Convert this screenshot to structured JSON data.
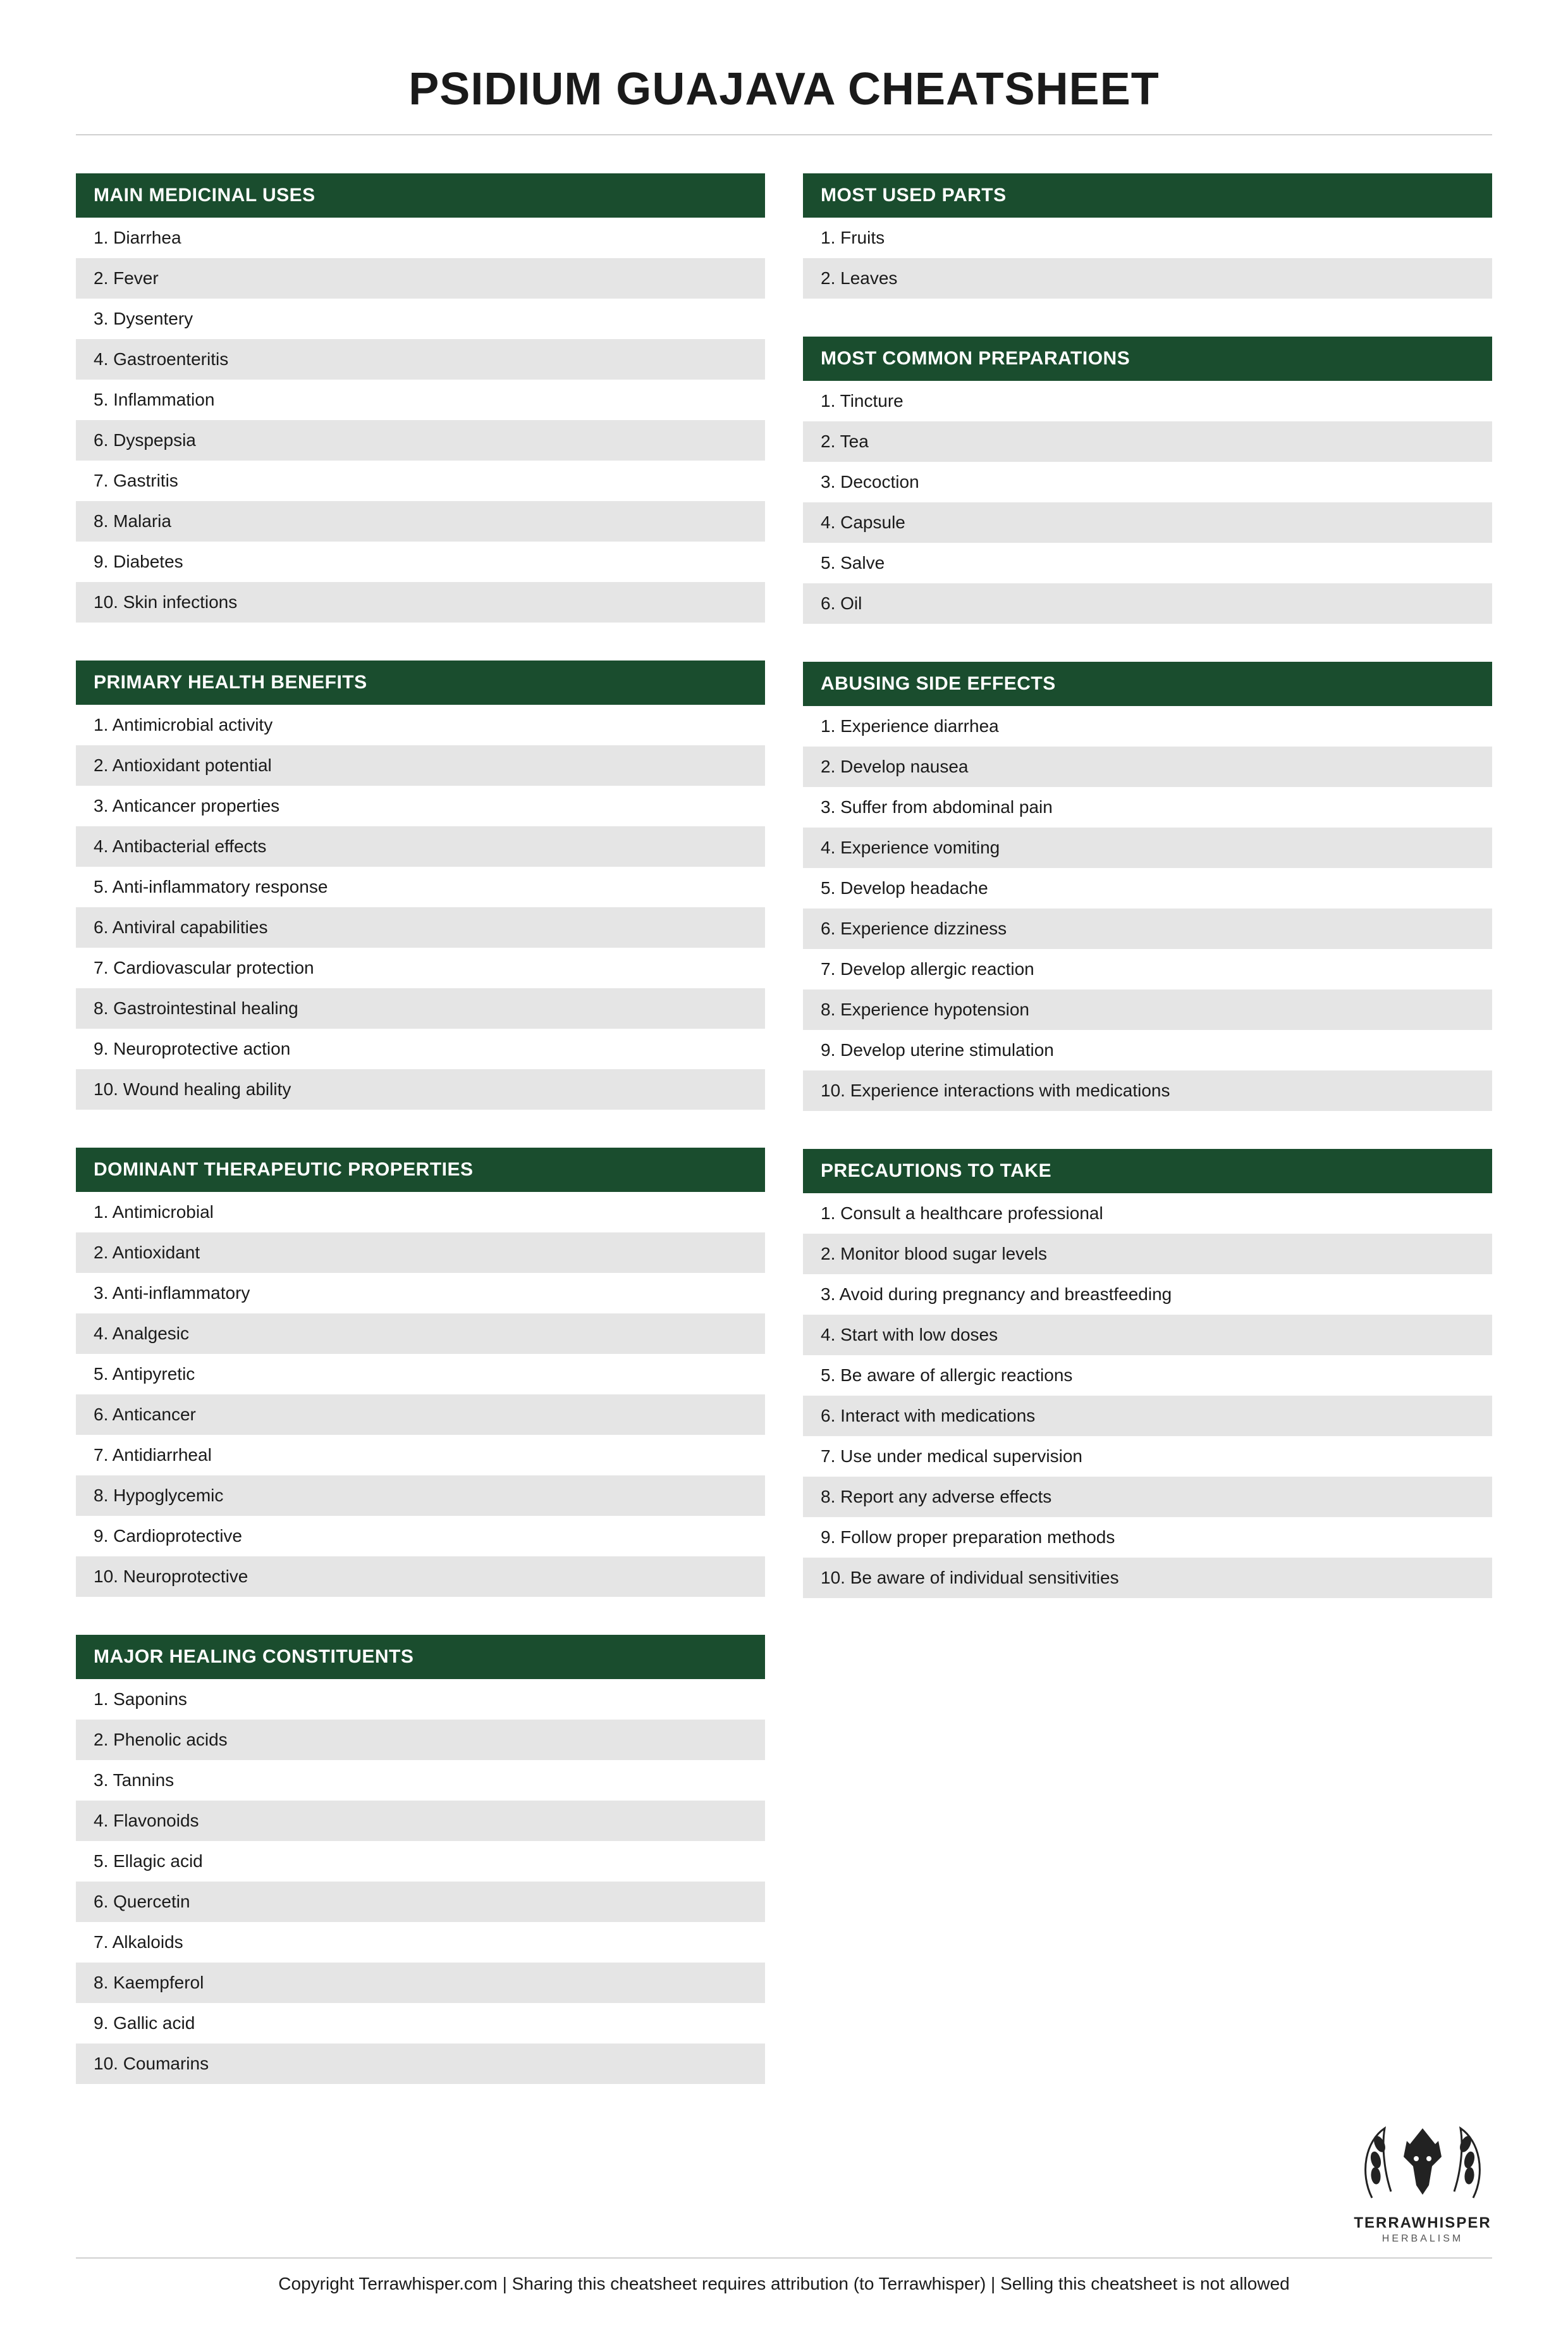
{
  "title": "PSIDIUM GUAJAVA CHEATSHEET",
  "colors": {
    "header_bg": "#1a4d2e",
    "header_text": "#ffffff",
    "row_odd": "#ffffff",
    "row_even": "#e5e5e5",
    "divider": "#d0d0d0",
    "page_bg": "#ffffff",
    "text": "#1a1a1a"
  },
  "left_column": [
    {
      "heading": "MAIN MEDICINAL USES",
      "items": [
        "Diarrhea",
        "Fever",
        "Dysentery",
        "Gastroenteritis",
        "Inflammation",
        "Dyspepsia",
        "Gastritis",
        "Malaria",
        "Diabetes",
        "Skin infections"
      ]
    },
    {
      "heading": "PRIMARY HEALTH BENEFITS",
      "items": [
        "Antimicrobial activity",
        "Antioxidant potential",
        "Anticancer properties",
        "Antibacterial effects",
        "Anti-inflammatory response",
        "Antiviral capabilities",
        "Cardiovascular protection",
        "Gastrointestinal healing",
        "Neuroprotective action",
        "Wound healing ability"
      ]
    },
    {
      "heading": "DOMINANT THERAPEUTIC PROPERTIES",
      "items": [
        "Antimicrobial",
        "Antioxidant",
        "Anti-inflammatory",
        "Analgesic",
        "Antipyretic",
        "Anticancer",
        "Antidiarrheal",
        "Hypoglycemic",
        "Cardioprotective",
        "Neuroprotective"
      ]
    },
    {
      "heading": "MAJOR HEALING CONSTITUENTS",
      "items": [
        "Saponins",
        "Phenolic acids",
        "Tannins",
        "Flavonoids",
        "Ellagic acid",
        "Quercetin",
        "Alkaloids",
        "Kaempferol",
        "Gallic acid",
        "Coumarins"
      ]
    }
  ],
  "right_column": [
    {
      "heading": "MOST USED PARTS",
      "items": [
        "Fruits",
        "Leaves"
      ]
    },
    {
      "heading": "MOST COMMON PREPARATIONS",
      "items": [
        "Tincture",
        "Tea",
        "Decoction",
        "Capsule",
        "Salve",
        "Oil"
      ]
    },
    {
      "heading": "ABUSING SIDE EFFECTS",
      "items": [
        "Experience diarrhea",
        "Develop nausea",
        "Suffer from abdominal pain",
        "Experience vomiting",
        "Develop headache",
        "Experience dizziness",
        "Develop allergic reaction",
        "Experience hypotension",
        "Develop uterine stimulation",
        "Experience interactions with medications"
      ]
    },
    {
      "heading": "PRECAUTIONS TO TAKE",
      "items": [
        "Consult a healthcare professional",
        "Monitor blood sugar levels",
        "Avoid during pregnancy and breastfeeding",
        "Start with low doses",
        "Be aware of allergic reactions",
        "Interact with medications",
        "Use under medical supervision",
        "Report any adverse effects",
        "Follow proper preparation methods",
        "Be aware of individual sensitivities"
      ]
    }
  ],
  "logo": {
    "name": "TERRAWHISPER",
    "sub": "HERBALISM"
  },
  "footer": "Copyright Terrawhisper.com | Sharing this cheatsheet requires attribution (to Terrawhisper) | Selling this cheatsheet is not allowed"
}
